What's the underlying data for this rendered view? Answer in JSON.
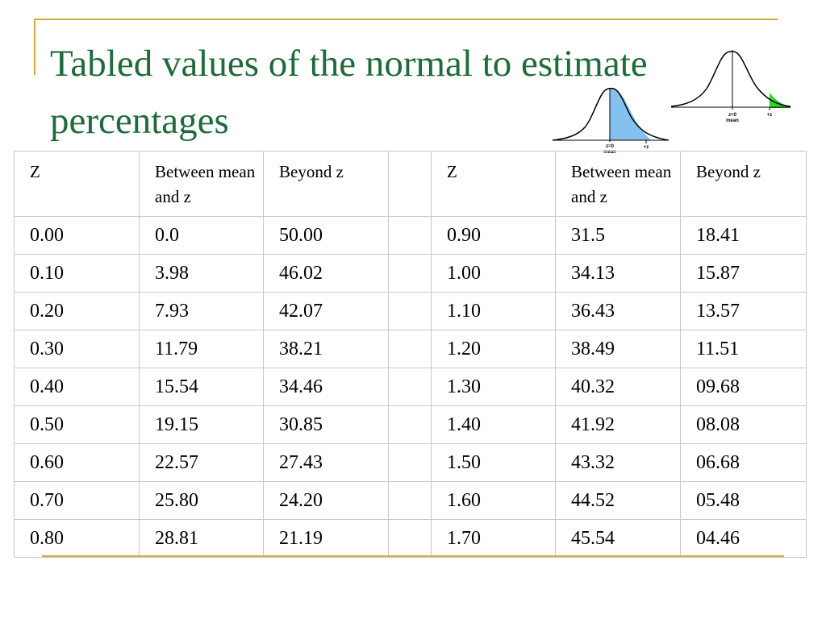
{
  "slide": {
    "title": "Tabled values of the normal to estimate percentages"
  },
  "figures": {
    "between_curve": {
      "center_label": "z=0",
      "center_sublabel": "mean",
      "z_label": "+z",
      "fill_color": "#85c1ef"
    },
    "beyond_curve": {
      "center_label": "z=0",
      "center_sublabel": "mean",
      "z_label": "+z",
      "fill_color": "#2ed62e"
    }
  },
  "table": {
    "headers": [
      "Z",
      "Between mean and z",
      "Beyond z",
      "",
      "Z",
      "Between mean and z",
      "Beyond z"
    ],
    "rows": [
      [
        "0.00",
        "0.0",
        "50.00",
        "",
        "0.90",
        "31.5",
        "18.41"
      ],
      [
        "0.10",
        "3.98",
        "46.02",
        "",
        "1.00",
        "34.13",
        "15.87"
      ],
      [
        "0.20",
        "7.93",
        "42.07",
        "",
        "1.10",
        "36.43",
        "13.57"
      ],
      [
        "0.30",
        "11.79",
        "38.21",
        "",
        "1.20",
        "38.49",
        "11.51"
      ],
      [
        "0.40",
        "15.54",
        "34.46",
        "",
        "1.30",
        "40.32",
        "09.68"
      ],
      [
        "0.50",
        "19.15",
        "30.85",
        "",
        "1.40",
        "41.92",
        "08.08"
      ],
      [
        "0.60",
        "22.57",
        "27.43",
        "",
        "1.50",
        "43.32",
        "06.68"
      ],
      [
        "0.70",
        "25.80",
        "24.20",
        "",
        "1.60",
        "44.52",
        "05.48"
      ],
      [
        "0.80",
        "28.81",
        "21.19",
        "",
        "1.70",
        "45.54",
        "04.46"
      ]
    ]
  }
}
